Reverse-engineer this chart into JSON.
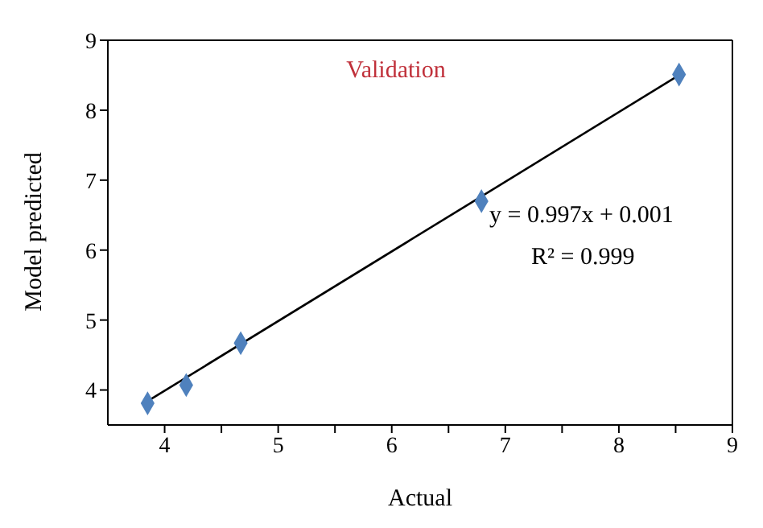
{
  "chart_data": {
    "type": "scatter",
    "xlabel": "Actual",
    "ylabel": "Model predicted",
    "annotations": [
      "Validation",
      "y = 0.997x + 0.001",
      "R² = 0.999"
    ],
    "xlim": [
      3.5,
      9
    ],
    "ylim": [
      3.5,
      9
    ],
    "xticks": [
      4,
      {
        "value": 4.5,
        "label": null
      },
      5,
      {
        "value": 5.5,
        "label": null
      },
      6,
      {
        "value": 6.5,
        "label": null
      },
      7,
      {
        "value": 7.5,
        "label": null
      },
      8,
      {
        "value": 8.5,
        "label": null
      },
      9
    ],
    "yticks": [
      4,
      5,
      6,
      7,
      8,
      9
    ],
    "marker": "diamond",
    "grid": false,
    "legend": false,
    "series": [
      {
        "color": "#4f81bd",
        "x": [
          3.85,
          4.19,
          4.67,
          6.79,
          8.53
        ],
        "values": [
          3.81,
          4.07,
          4.67,
          6.7,
          8.51
        ]
      },
      {
        "type": "line",
        "color": "#000000",
        "x": [
          3.85,
          8.53
        ],
        "values": [
          3.84,
          8.5
        ],
        "marker": "none"
      }
    ]
  }
}
